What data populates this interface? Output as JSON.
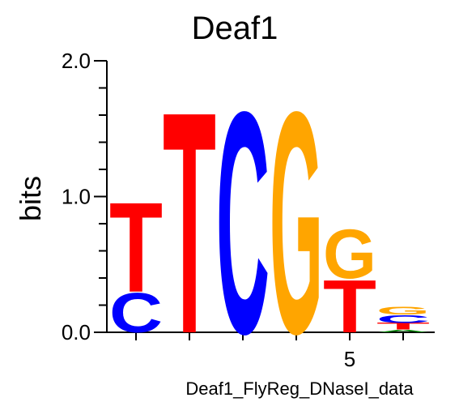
{
  "chart_data": {
    "type": "sequence-logo",
    "title": "Deaf1",
    "ylabel": "bits",
    "xlabel": "Deaf1_FlyReg_DNaseI_data",
    "ylim": [
      0,
      2
    ],
    "y_ticks": [
      "0.0",
      "1.0",
      "2.0"
    ],
    "x_tick_labels": [
      {
        "position": 5,
        "label": "5"
      }
    ],
    "colors": {
      "A": "#008000",
      "C": "#0000ff",
      "G": "#ffa500",
      "T": "#ff0000"
    },
    "positions": [
      {
        "position": 1,
        "letters": [
          {
            "letter": "C",
            "bits": 0.3
          },
          {
            "letter": "T",
            "bits": 0.68
          }
        ]
      },
      {
        "position": 2,
        "letters": [
          {
            "letter": "T",
            "bits": 1.68
          }
        ]
      },
      {
        "position": 3,
        "letters": [
          {
            "letter": "C",
            "bits": 1.68
          }
        ]
      },
      {
        "position": 4,
        "letters": [
          {
            "letter": "G",
            "bits": 1.68
          }
        ]
      },
      {
        "position": 5,
        "letters": [
          {
            "letter": "T",
            "bits": 0.4
          },
          {
            "letter": "G",
            "bits": 0.37
          }
        ]
      },
      {
        "position": 6,
        "letters": [
          {
            "letter": "A",
            "bits": 0.02
          },
          {
            "letter": "T",
            "bits": 0.05
          },
          {
            "letter": "C",
            "bits": 0.06
          },
          {
            "letter": "G",
            "bits": 0.06
          }
        ]
      }
    ]
  }
}
